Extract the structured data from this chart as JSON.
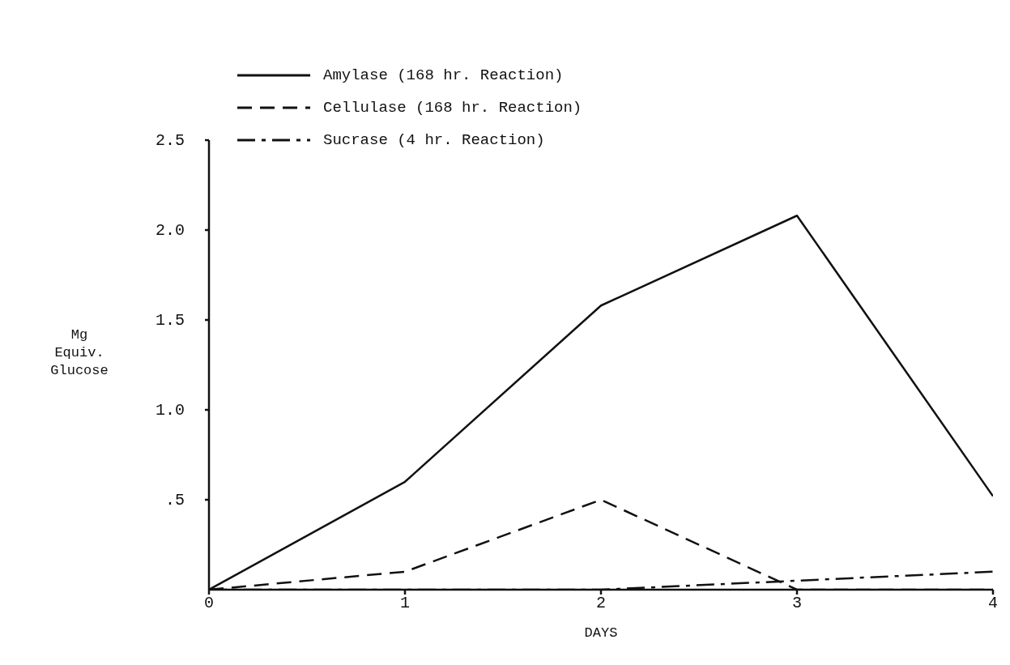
{
  "chart_data": {
    "type": "line",
    "xlabel": "DAYS",
    "ylabel": "Mg\nEquiv.\nGlucose",
    "x": [
      0,
      1,
      2,
      3,
      4
    ],
    "series": [
      {
        "name": "Amylase (168 hr. Reaction)",
        "color": "#111111",
        "line_style": "solid",
        "values": [
          0,
          0.6,
          1.58,
          2.08,
          0.52
        ]
      },
      {
        "name": "Cellulase (168 hr. Reaction)",
        "color": "#111111",
        "line_style": "dashed",
        "values": [
          0,
          0.1,
          0.5,
          0,
          0
        ]
      },
      {
        "name": "Sucrase  (4 hr. Reaction)",
        "color": "#111111",
        "line_style": "dashdot",
        "values": [
          0,
          0,
          0,
          0.05,
          0.1
        ]
      }
    ],
    "xlim": [
      0,
      4
    ],
    "xticks": [
      0,
      1,
      2,
      3,
      4
    ],
    "ylim": [
      0,
      2.5
    ],
    "yticks": [
      {
        "value": 0.5,
        "label": ".5"
      },
      {
        "value": 1,
        "label": "1.0"
      },
      {
        "value": 1.5,
        "label": "1.5"
      },
      {
        "value": 2,
        "label": "2.0"
      },
      {
        "value": 2.5,
        "label": "2.5"
      }
    ],
    "grid": false,
    "legend": "top left",
    "marker": "none"
  }
}
